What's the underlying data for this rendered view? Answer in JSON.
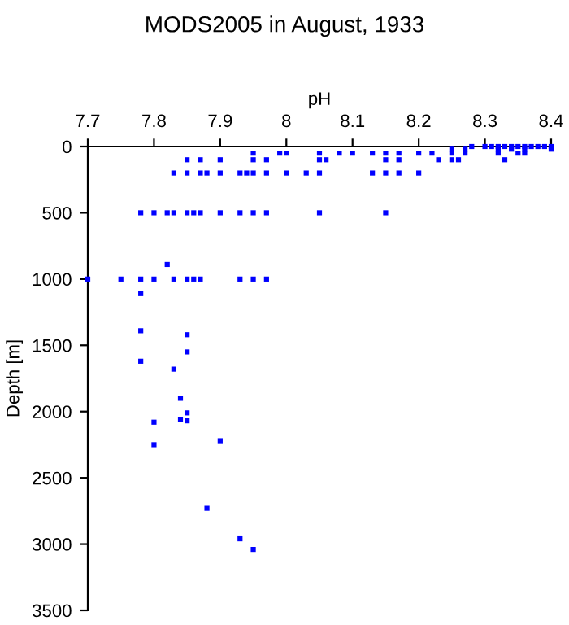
{
  "chart_data": {
    "type": "scatter",
    "title": "MODS2005 in August, 1933",
    "xlabel": "pH",
    "ylabel": "Depth [m]",
    "x": [
      8.28,
      8.3,
      8.31,
      8.32,
      8.33,
      8.34,
      8.35,
      8.36,
      8.37,
      8.38,
      8.39,
      8.4,
      8.25,
      8.27,
      8.32,
      8.34,
      8.36,
      8.4,
      7.95,
      7.99,
      8.0,
      8.05,
      8.08,
      8.1,
      8.13,
      8.15,
      8.17,
      8.2,
      8.22,
      8.25,
      8.27,
      8.32,
      8.35,
      8.36,
      7.85,
      7.87,
      7.9,
      7.95,
      7.97,
      8.05,
      8.06,
      8.15,
      8.17,
      8.23,
      8.25,
      8.26,
      8.33,
      7.83,
      7.85,
      7.87,
      7.88,
      7.9,
      7.93,
      7.94,
      7.95,
      7.97,
      8.0,
      8.03,
      8.05,
      8.13,
      8.15,
      8.17,
      8.2,
      7.78,
      7.8,
      7.82,
      7.83,
      7.85,
      7.86,
      7.87,
      7.9,
      7.93,
      7.95,
      7.97,
      8.05,
      8.15,
      7.82,
      7.7,
      7.75,
      7.78,
      7.8,
      7.83,
      7.85,
      7.86,
      7.87,
      7.93,
      7.95,
      7.97,
      7.78,
      7.78,
      7.85,
      7.85,
      7.78,
      7.83,
      7.84,
      7.85,
      7.8,
      7.84,
      7.85,
      7.9,
      7.8,
      7.88,
      7.93,
      7.95
    ],
    "values": [
      0,
      0,
      0,
      0,
      0,
      0,
      0,
      0,
      0,
      0,
      0,
      0,
      20,
      20,
      20,
      20,
      20,
      20,
      50,
      50,
      50,
      50,
      50,
      50,
      50,
      50,
      50,
      50,
      50,
      50,
      50,
      50,
      50,
      50,
      100,
      100,
      100,
      100,
      100,
      100,
      100,
      100,
      100,
      100,
      100,
      100,
      100,
      200,
      200,
      200,
      200,
      200,
      200,
      200,
      200,
      200,
      200,
      200,
      200,
      200,
      200,
      200,
      200,
      500,
      500,
      500,
      500,
      500,
      500,
      500,
      500,
      500,
      500,
      500,
      500,
      500,
      890,
      1000,
      1000,
      1000,
      1000,
      1000,
      1000,
      1000,
      1000,
      1000,
      1000,
      1000,
      1110,
      1390,
      1420,
      1550,
      1620,
      1680,
      1900,
      2010,
      2080,
      2060,
      2070,
      2220,
      2250,
      2730,
      2960,
      3040
    ],
    "color": "#0000ff",
    "marker": "square",
    "xlim": [
      7.7,
      8.4
    ],
    "xticks": [
      7.7,
      7.8,
      7.9,
      8,
      8.1,
      8.2,
      8.3,
      8.4
    ],
    "ylim": [
      3500,
      0
    ],
    "yticks": [
      0,
      500,
      1000,
      1500,
      2000,
      2500,
      3000,
      3500
    ],
    "grid": false
  }
}
